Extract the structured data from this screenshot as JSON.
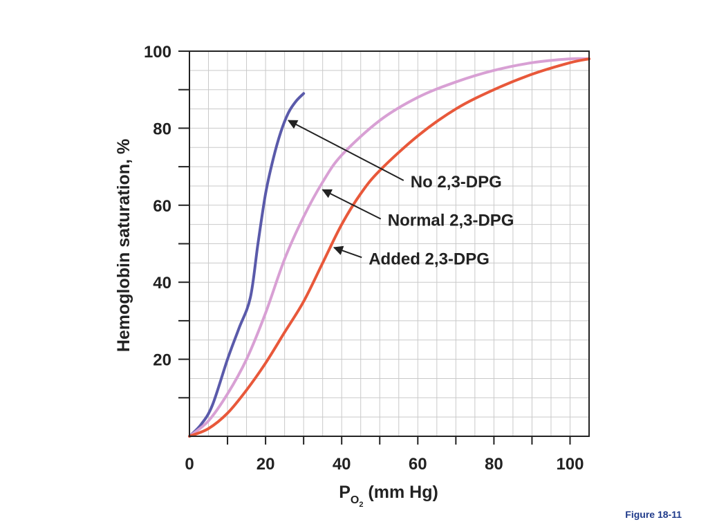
{
  "chart_data": {
    "type": "line",
    "xlabel_main": "P",
    "xlabel_sub": "O",
    "xlabel_subsub": "2",
    "xlabel_unit": " (mm Hg)",
    "ylabel": "Hemoglobin saturation, %",
    "xlim": [
      0,
      105
    ],
    "ylim": [
      0,
      100
    ],
    "x_ticks": [
      0,
      20,
      40,
      60,
      80,
      100
    ],
    "x_tick_labels": [
      "0",
      "20",
      "40",
      "60",
      "80",
      "100"
    ],
    "y_ticks": [
      20,
      40,
      60,
      80,
      100
    ],
    "y_tick_labels": [
      "20",
      "40",
      "60",
      "80",
      "100"
    ],
    "grid": true,
    "series": [
      {
        "name": "No 2,3-DPG",
        "color": "#5a5aaa",
        "x": [
          0,
          3,
          6,
          10,
          13,
          16,
          18,
          20,
          22,
          24,
          26,
          28,
          30
        ],
        "y": [
          0,
          3,
          8,
          20,
          28,
          36,
          50,
          63,
          72,
          79,
          84,
          87,
          89
        ]
      },
      {
        "name": "Normal 2,3-DPG",
        "color": "#d8a0d4",
        "x": [
          0,
          5,
          10,
          15,
          20,
          25,
          30,
          35,
          40,
          50,
          60,
          70,
          80,
          90,
          100,
          105
        ],
        "y": [
          0,
          4,
          11,
          20,
          32,
          46,
          57,
          66,
          73,
          82,
          88,
          92,
          95,
          97,
          98,
          98
        ]
      },
      {
        "name": "Added 2,3-DPG",
        "color": "#e8583a",
        "x": [
          0,
          5,
          10,
          15,
          20,
          25,
          30,
          35,
          40,
          45,
          50,
          60,
          70,
          80,
          90,
          100,
          105
        ],
        "y": [
          0,
          2,
          6,
          12,
          19,
          27,
          35,
          45,
          55,
          63,
          69,
          78,
          85,
          90,
          94,
          97,
          98
        ]
      }
    ],
    "annotations": [
      {
        "text": "No 2,3-DPG",
        "arrow_to": [
          26,
          82
        ],
        "label_at": [
          57,
          65
        ]
      },
      {
        "text": "Normal 2,3-DPG",
        "arrow_to": [
          35,
          64
        ],
        "label_at": [
          51,
          55
        ]
      },
      {
        "text": "Added 2,3-DPG",
        "arrow_to": [
          38,
          49
        ],
        "label_at": [
          46,
          45
        ]
      }
    ]
  },
  "figure_label": "Figure 18-11"
}
